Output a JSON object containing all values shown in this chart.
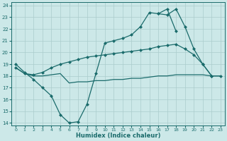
{
  "xlabel": "Humidex (Indice chaleur)",
  "bg_color": "#cce8e8",
  "grid_color": "#aacccc",
  "line_color": "#1a6b6b",
  "xlim": [
    -0.5,
    23.5
  ],
  "ylim": [
    13.8,
    24.3
  ],
  "yticks": [
    14,
    15,
    16,
    17,
    18,
    19,
    20,
    21,
    22,
    23,
    24
  ],
  "xticks": [
    0,
    1,
    2,
    3,
    4,
    5,
    6,
    7,
    8,
    9,
    10,
    11,
    12,
    13,
    14,
    15,
    16,
    17,
    18,
    19,
    20,
    21,
    22,
    23
  ],
  "line_spike": [
    19.0,
    18.3,
    17.7,
    17.0,
    16.3,
    14.7,
    14.0,
    14.1,
    15.6,
    18.2,
    20.8,
    21.0,
    21.2,
    21.5,
    22.2,
    23.4,
    23.3,
    23.7,
    21.8,
    null,
    null,
    null,
    null,
    null
  ],
  "line_upper": [
    null,
    null,
    null,
    null,
    null,
    null,
    null,
    null,
    null,
    null,
    null,
    null,
    null,
    null,
    null,
    null,
    23.3,
    23.2,
    23.7,
    22.2,
    20.3,
    19.0,
    18.0,
    null
  ],
  "line_mid": [
    18.7,
    18.2,
    18.1,
    18.3,
    18.7,
    19.0,
    19.2,
    19.4,
    19.6,
    19.7,
    19.8,
    19.9,
    20.0,
    20.1,
    20.2,
    20.3,
    20.5,
    20.6,
    20.7,
    20.3,
    19.8,
    19.0,
    18.0,
    18.0
  ],
  "line_lower": [
    18.7,
    18.2,
    18.0,
    18.0,
    18.1,
    18.2,
    17.4,
    17.5,
    17.5,
    17.6,
    17.6,
    17.7,
    17.7,
    17.8,
    17.8,
    17.9,
    18.0,
    18.0,
    18.1,
    18.1,
    18.1,
    18.1,
    18.0,
    18.0
  ]
}
